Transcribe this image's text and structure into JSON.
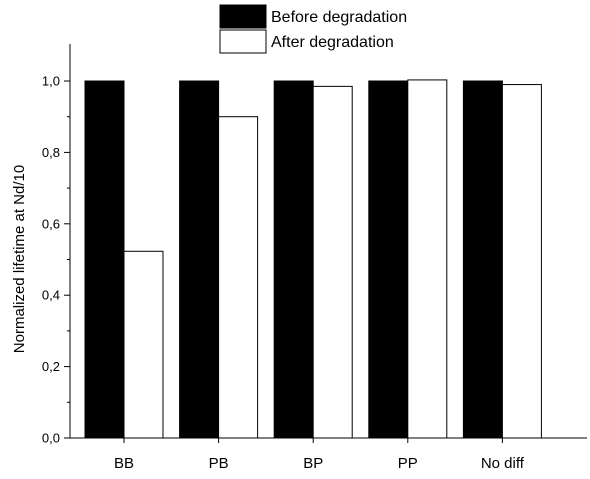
{
  "chart_data": {
    "type": "bar",
    "title": "",
    "xlabel": "",
    "ylabel": "Normalized lifetime at Nd/10",
    "categories": [
      "BB",
      "PB",
      "BP",
      "PP",
      "No diff"
    ],
    "series": [
      {
        "name": "Before degradation",
        "values": [
          1.0,
          1.0,
          1.0,
          1.0,
          1.0
        ],
        "color": "#000000"
      },
      {
        "name": "After degradation",
        "values": [
          0.523,
          0.9,
          0.985,
          1.003,
          0.99
        ],
        "color": "#ffffff"
      }
    ],
    "ylim": [
      0,
      1.0
    ],
    "yticks": [
      "0,0",
      "0,2",
      "0,4",
      "0,6",
      "0,8",
      "1,0"
    ],
    "ytick_values": [
      0,
      0.2,
      0.4,
      0.6,
      0.8,
      1.0
    ],
    "grid": false,
    "legend_position": "top"
  }
}
